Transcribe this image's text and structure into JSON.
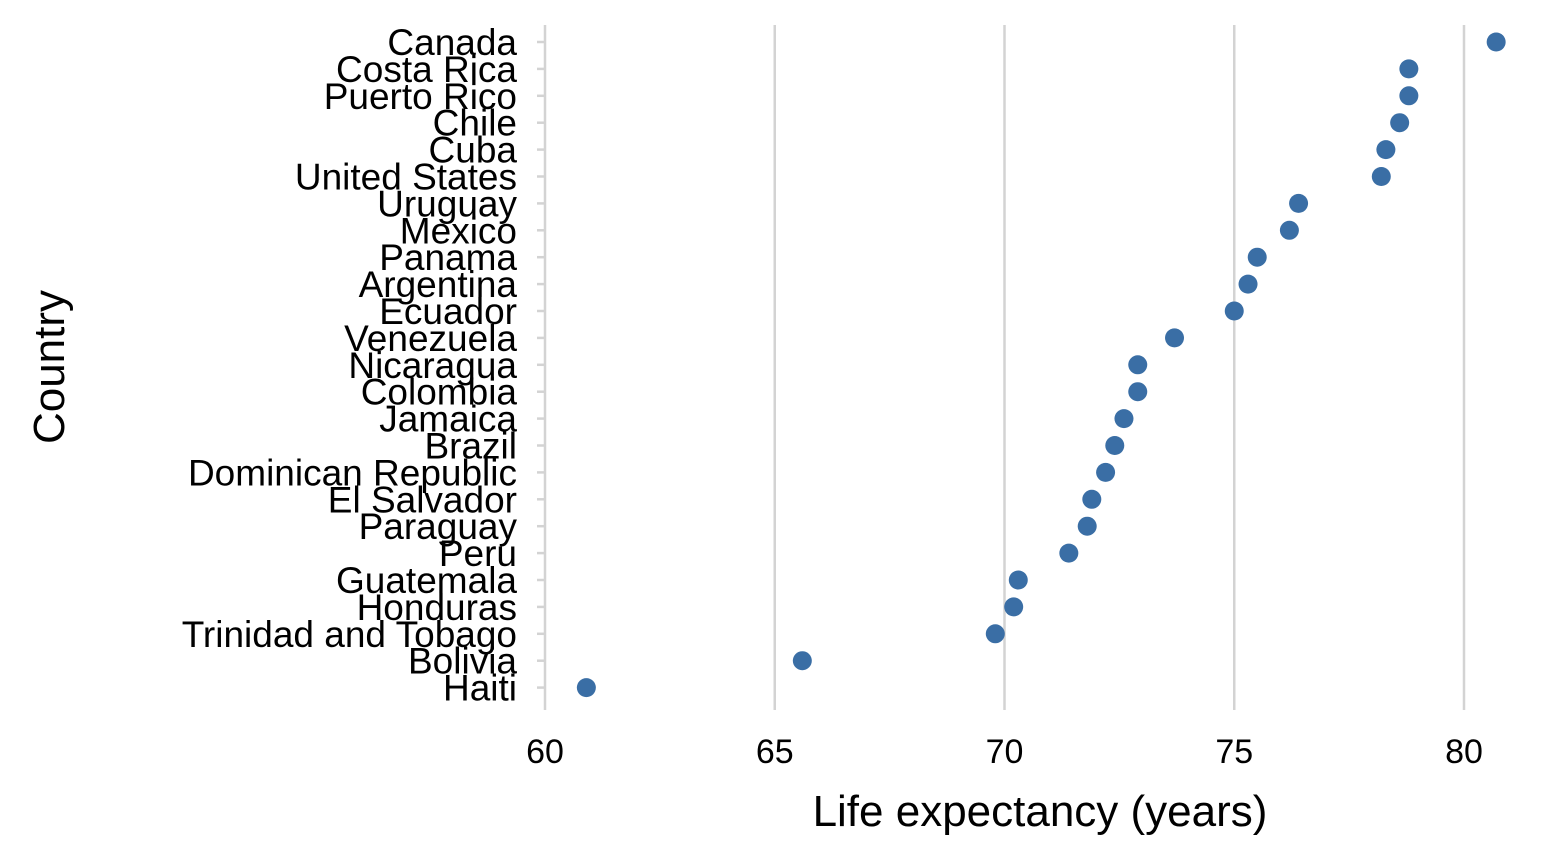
{
  "chart_data": {
    "type": "scatter",
    "xlabel": "Life expectancy (years)",
    "ylabel": "Country",
    "xlim": [
      60,
      81
    ],
    "xticks": [
      60,
      65,
      70,
      75,
      80
    ],
    "grid": "vertical",
    "point_color": "#3a6ea5",
    "points": [
      {
        "country": "Canada",
        "value": 80.7
      },
      {
        "country": "Costa Rica",
        "value": 78.8
      },
      {
        "country": "Puerto Rico",
        "value": 78.8
      },
      {
        "country": "Chile",
        "value": 78.6
      },
      {
        "country": "Cuba",
        "value": 78.3
      },
      {
        "country": "United States",
        "value": 78.2
      },
      {
        "country": "Uruguay",
        "value": 76.4
      },
      {
        "country": "Mexico",
        "value": 76.2
      },
      {
        "country": "Panama",
        "value": 75.5
      },
      {
        "country": "Argentina",
        "value": 75.3
      },
      {
        "country": "Ecuador",
        "value": 75.0
      },
      {
        "country": "Venezuela",
        "value": 73.7
      },
      {
        "country": "Nicaragua",
        "value": 72.9
      },
      {
        "country": "Colombia",
        "value": 72.9
      },
      {
        "country": "Jamaica",
        "value": 72.6
      },
      {
        "country": "Brazil",
        "value": 72.4
      },
      {
        "country": "Dominican Republic",
        "value": 72.2
      },
      {
        "country": "El Salvador",
        "value": 71.9
      },
      {
        "country": "Paraguay",
        "value": 71.8
      },
      {
        "country": "Peru",
        "value": 71.4
      },
      {
        "country": "Guatemala",
        "value": 70.3
      },
      {
        "country": "Honduras",
        "value": 70.2
      },
      {
        "country": "Trinidad and Tobago",
        "value": 69.8
      },
      {
        "country": "Bolivia",
        "value": 65.6
      },
      {
        "country": "Haiti",
        "value": 60.9
      }
    ]
  }
}
